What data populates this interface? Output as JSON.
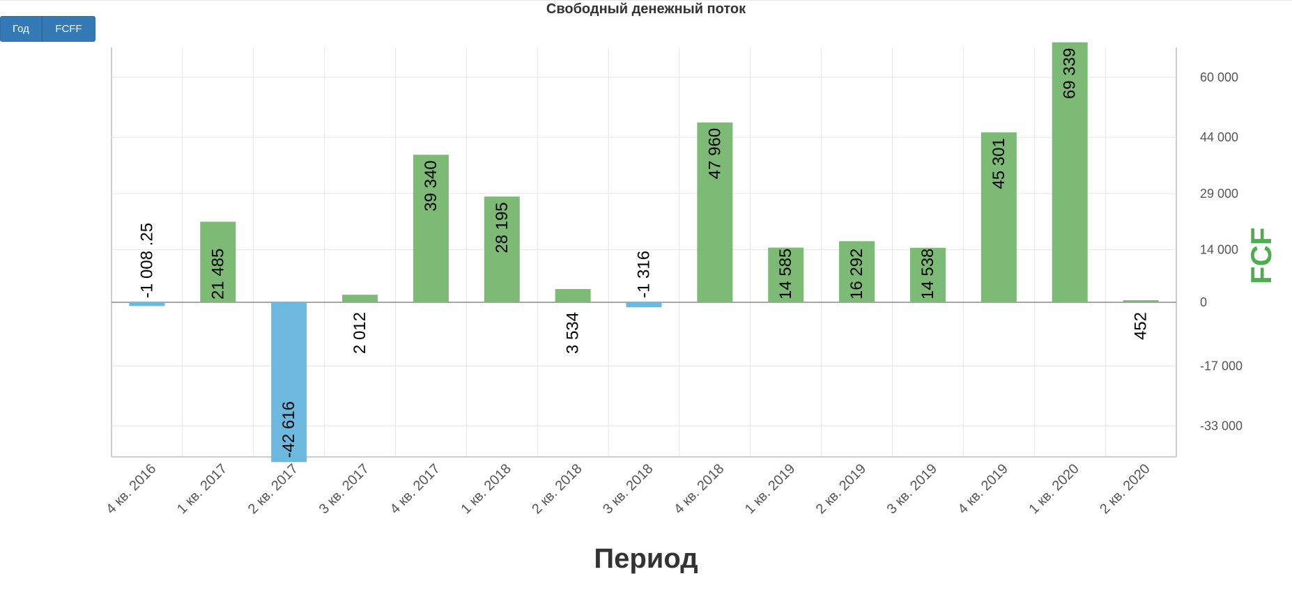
{
  "buttons": {
    "year_label": "Год",
    "fcff_label": "FCFF"
  },
  "colors": {
    "positive": "#7cba76",
    "negative": "#6cb8df",
    "grid": "#e6e6e6",
    "axis": "#cccccc",
    "zero_line": "#888888",
    "tick_text": "#555555",
    "ylabel": "#4cae4c"
  },
  "chart_data": {
    "type": "bar",
    "title": "Свободный денежный поток",
    "xlabel": "Период",
    "ylabel": "FCF",
    "ylim": [
      -44000,
      73000
    ],
    "yticks": [
      -33000,
      -17000,
      0,
      14000,
      29000,
      44000,
      60000
    ],
    "ytick_labels": [
      "-33 000",
      "-17 000",
      "0",
      "14 000",
      "29 000",
      "44 000",
      "60 000"
    ],
    "y_axis_position": "right",
    "grid": true,
    "categories": [
      "4 кв. 2016",
      "1 кв. 2017",
      "2 кв. 2017",
      "3 кв. 2017",
      "4 кв. 2017",
      "1 кв. 2018",
      "2 кв. 2018",
      "3 кв. 2018",
      "4 кв. 2018",
      "1 кв. 2019",
      "2 кв. 2019",
      "3 кв. 2019",
      "4 кв. 2019",
      "1 кв. 2020",
      "2 кв. 2020"
    ],
    "values": [
      -1008.25,
      21485,
      -42616,
      2012,
      39340,
      28195,
      3534,
      -1316,
      47960,
      14585,
      16292,
      14538,
      45301,
      69339,
      452
    ],
    "data_labels": [
      "-1 008 .25",
      "21 485",
      "-42 616",
      "2 012",
      "39 340",
      "28 195",
      "3 534",
      "-1 316",
      "47 960",
      "14 585",
      "16 292",
      "14 538",
      "45 301",
      "69 339",
      "452"
    ]
  }
}
